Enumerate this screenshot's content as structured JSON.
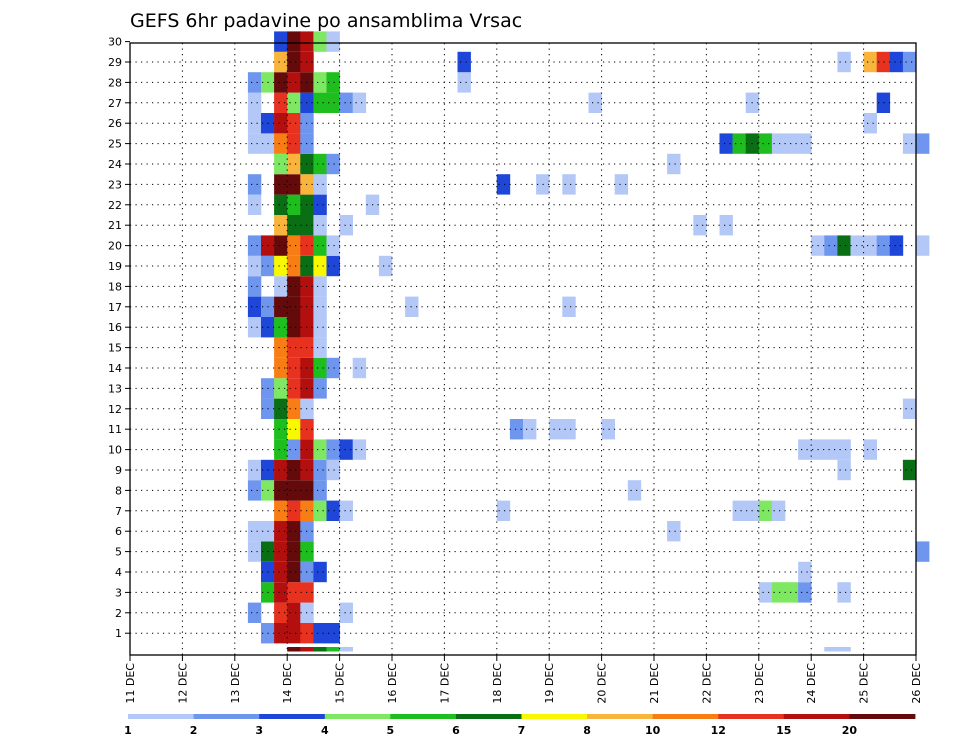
{
  "chart_data": {
    "type": "heatmap",
    "title": "GEFS 6hr padavine po ansamblima Vrsac",
    "x_tick_labels": [
      "11 DEC",
      "12 DEC",
      "13 DEC",
      "14 DEC",
      "15 DEC",
      "16 DEC",
      "17 DEC",
      "18 DEC",
      "19 DEC",
      "20 DEC",
      "21 DEC",
      "22 DEC",
      "23 DEC",
      "24 DEC",
      "25 DEC",
      "26 DEC"
    ],
    "y_tick_labels": [
      "1",
      "2",
      "3",
      "4",
      "5",
      "6",
      "7",
      "8",
      "9",
      "10",
      "11",
      "12",
      "13",
      "14",
      "15",
      "16",
      "17",
      "18",
      "19",
      "20",
      "21",
      "22",
      "23",
      "24",
      "25",
      "26",
      "27",
      "28",
      "29",
      "30"
    ],
    "grid": true,
    "legend": {
      "position": "bottom",
      "labels": [
        "1",
        "2",
        "3",
        "4",
        "5",
        "6",
        "7",
        "8",
        "10",
        "12",
        "15",
        "20"
      ],
      "colors": [
        "#b4c8f8",
        "#6e96ee",
        "#1e46d8",
        "#7ee862",
        "#1ebe1e",
        "#0a6e14",
        "#f8f800",
        "#f8b43c",
        "#f87d14",
        "#e6321e",
        "#b40f0f",
        "#640a0a"
      ]
    },
    "rows": {
      "1": [
        [
          10,
          1
        ],
        [
          11,
          10
        ],
        [
          12,
          10
        ],
        [
          13,
          9
        ],
        [
          14,
          2
        ],
        [
          15,
          2
        ]
      ],
      "2": [
        [
          9,
          1
        ],
        [
          11,
          9
        ],
        [
          12,
          10
        ],
        [
          13,
          0
        ],
        [
          16,
          0
        ]
      ],
      "3": [
        [
          10,
          4
        ],
        [
          11,
          10
        ],
        [
          12,
          9
        ],
        [
          13,
          9
        ],
        [
          48,
          0
        ],
        [
          49,
          3
        ],
        [
          50,
          3
        ],
        [
          51,
          1
        ],
        [
          54,
          0
        ]
      ],
      "4": [
        [
          10,
          2
        ],
        [
          11,
          10
        ],
        [
          12,
          11
        ],
        [
          13,
          1
        ],
        [
          14,
          2
        ],
        [
          51,
          0
        ]
      ],
      "5": [
        [
          9,
          0
        ],
        [
          10,
          5
        ],
        [
          11,
          10
        ],
        [
          12,
          11
        ],
        [
          13,
          4
        ],
        [
          60,
          1
        ]
      ],
      "6": [
        [
          9,
          0
        ],
        [
          10,
          0
        ],
        [
          11,
          10
        ],
        [
          12,
          11
        ],
        [
          13,
          1
        ],
        [
          41,
          0
        ]
      ],
      "7": [
        [
          11,
          8
        ],
        [
          12,
          9
        ],
        [
          13,
          8
        ],
        [
          14,
          3
        ],
        [
          15,
          2
        ],
        [
          16,
          0
        ],
        [
          28,
          0
        ],
        [
          46,
          0
        ],
        [
          47,
          0
        ],
        [
          48,
          3
        ],
        [
          49,
          0
        ]
      ],
      "8": [
        [
          9,
          1
        ],
        [
          10,
          3
        ],
        [
          11,
          11
        ],
        [
          12,
          11
        ],
        [
          13,
          11
        ],
        [
          14,
          1
        ],
        [
          38,
          0
        ]
      ],
      "9": [
        [
          9,
          0
        ],
        [
          10,
          2
        ],
        [
          11,
          10
        ],
        [
          12,
          11
        ],
        [
          13,
          10
        ],
        [
          14,
          1
        ],
        [
          15,
          0
        ],
        [
          54,
          0
        ],
        [
          59,
          5
        ]
      ],
      "10": [
        [
          11,
          4
        ],
        [
          12,
          1
        ],
        [
          13,
          10
        ],
        [
          14,
          3
        ],
        [
          15,
          1
        ],
        [
          16,
          2
        ],
        [
          17,
          0
        ],
        [
          51,
          0
        ],
        [
          52,
          0
        ],
        [
          53,
          0
        ],
        [
          54,
          0
        ],
        [
          56,
          0
        ]
      ],
      "11": [
        [
          11,
          4
        ],
        [
          12,
          6
        ],
        [
          13,
          9
        ],
        [
          29,
          1
        ],
        [
          30,
          0
        ],
        [
          32,
          0
        ],
        [
          33,
          0
        ],
        [
          36,
          0
        ]
      ],
      "12": [
        [
          10,
          1
        ],
        [
          11,
          5
        ],
        [
          12,
          8
        ],
        [
          13,
          0
        ],
        [
          59,
          0
        ]
      ],
      "13": [
        [
          10,
          1
        ],
        [
          11,
          3
        ],
        [
          12,
          9
        ],
        [
          13,
          10
        ],
        [
          14,
          1
        ]
      ],
      "14": [
        [
          11,
          8
        ],
        [
          12,
          9
        ],
        [
          13,
          10
        ],
        [
          14,
          4
        ],
        [
          15,
          1
        ],
        [
          17,
          0
        ]
      ],
      "15": [
        [
          11,
          8
        ],
        [
          12,
          9
        ],
        [
          13,
          9
        ],
        [
          14,
          0
        ]
      ],
      "16": [
        [
          9,
          0
        ],
        [
          10,
          2
        ],
        [
          11,
          4
        ],
        [
          12,
          11
        ],
        [
          13,
          10
        ],
        [
          14,
          0
        ]
      ],
      "17": [
        [
          9,
          2
        ],
        [
          10,
          1
        ],
        [
          11,
          11
        ],
        [
          12,
          11
        ],
        [
          13,
          10
        ],
        [
          14,
          0
        ],
        [
          21,
          0
        ],
        [
          33,
          0
        ]
      ],
      "18": [
        [
          9,
          1
        ],
        [
          11,
          0
        ],
        [
          12,
          11
        ],
        [
          13,
          10
        ],
        [
          14,
          0
        ]
      ],
      "19": [
        [
          9,
          0
        ],
        [
          10,
          1
        ],
        [
          11,
          6
        ],
        [
          12,
          8
        ],
        [
          13,
          5
        ],
        [
          14,
          6
        ],
        [
          15,
          2
        ],
        [
          19,
          0
        ]
      ],
      "20": [
        [
          9,
          1
        ],
        [
          10,
          10
        ],
        [
          11,
          11
        ],
        [
          12,
          8
        ],
        [
          13,
          9
        ],
        [
          14,
          4
        ],
        [
          15,
          0
        ],
        [
          52,
          0
        ],
        [
          53,
          1
        ],
        [
          54,
          5
        ],
        [
          55,
          0
        ],
        [
          56,
          0
        ],
        [
          57,
          1
        ],
        [
          58,
          2
        ],
        [
          60,
          0
        ]
      ],
      "21": [
        [
          11,
          7
        ],
        [
          12,
          5
        ],
        [
          13,
          5
        ],
        [
          14,
          0
        ],
        [
          16,
          0
        ],
        [
          43,
          0
        ],
        [
          45,
          0
        ]
      ],
      "22": [
        [
          9,
          0
        ],
        [
          11,
          5
        ],
        [
          12,
          4
        ],
        [
          13,
          5
        ],
        [
          14,
          2
        ],
        [
          18,
          0
        ]
      ],
      "23": [
        [
          9,
          1
        ],
        [
          11,
          11
        ],
        [
          12,
          11
        ],
        [
          13,
          7
        ],
        [
          14,
          0
        ],
        [
          28,
          2
        ],
        [
          31,
          0
        ],
        [
          33,
          0
        ],
        [
          37,
          0
        ]
      ],
      "24": [
        [
          11,
          3
        ],
        [
          12,
          7
        ],
        [
          13,
          5
        ],
        [
          14,
          4
        ],
        [
          15,
          1
        ],
        [
          41,
          0
        ]
      ],
      "25": [
        [
          9,
          0
        ],
        [
          10,
          0
        ],
        [
          11,
          8
        ],
        [
          12,
          9
        ],
        [
          13,
          1
        ],
        [
          45,
          2
        ],
        [
          46,
          4
        ],
        [
          47,
          5
        ],
        [
          48,
          4
        ],
        [
          49,
          0
        ],
        [
          50,
          0
        ],
        [
          51,
          0
        ],
        [
          59,
          0
        ],
        [
          60,
          1
        ]
      ],
      "26": [
        [
          9,
          0
        ],
        [
          10,
          2
        ],
        [
          11,
          10
        ],
        [
          12,
          9
        ],
        [
          13,
          1
        ],
        [
          56,
          0
        ]
      ],
      "27": [
        [
          9,
          0
        ],
        [
          11,
          9
        ],
        [
          12,
          3
        ],
        [
          13,
          2
        ],
        [
          14,
          4
        ],
        [
          15,
          4
        ],
        [
          16,
          1
        ],
        [
          17,
          0
        ],
        [
          35,
          0
        ],
        [
          47,
          0
        ],
        [
          57,
          2
        ]
      ],
      "28": [
        [
          9,
          1
        ],
        [
          10,
          3
        ],
        [
          11,
          11
        ],
        [
          12,
          10
        ],
        [
          13,
          11
        ],
        [
          14,
          3
        ],
        [
          15,
          4
        ],
        [
          25,
          0
        ]
      ],
      "29": [
        [
          11,
          7
        ],
        [
          12,
          11
        ],
        [
          13,
          10
        ],
        [
          25,
          2
        ],
        [
          54,
          0
        ],
        [
          56,
          7
        ],
        [
          57,
          9
        ],
        [
          58,
          2
        ],
        [
          59,
          1
        ]
      ],
      "30": [
        [
          11,
          2
        ],
        [
          12,
          11
        ],
        [
          13,
          10
        ],
        [
          14,
          3
        ],
        [
          15,
          0
        ]
      ],
      "bottom": [
        [
          12,
          11
        ],
        [
          13,
          10
        ],
        [
          14,
          5
        ],
        [
          15,
          4
        ],
        [
          16,
          0
        ],
        [
          53,
          0
        ],
        [
          54,
          0
        ]
      ]
    }
  }
}
